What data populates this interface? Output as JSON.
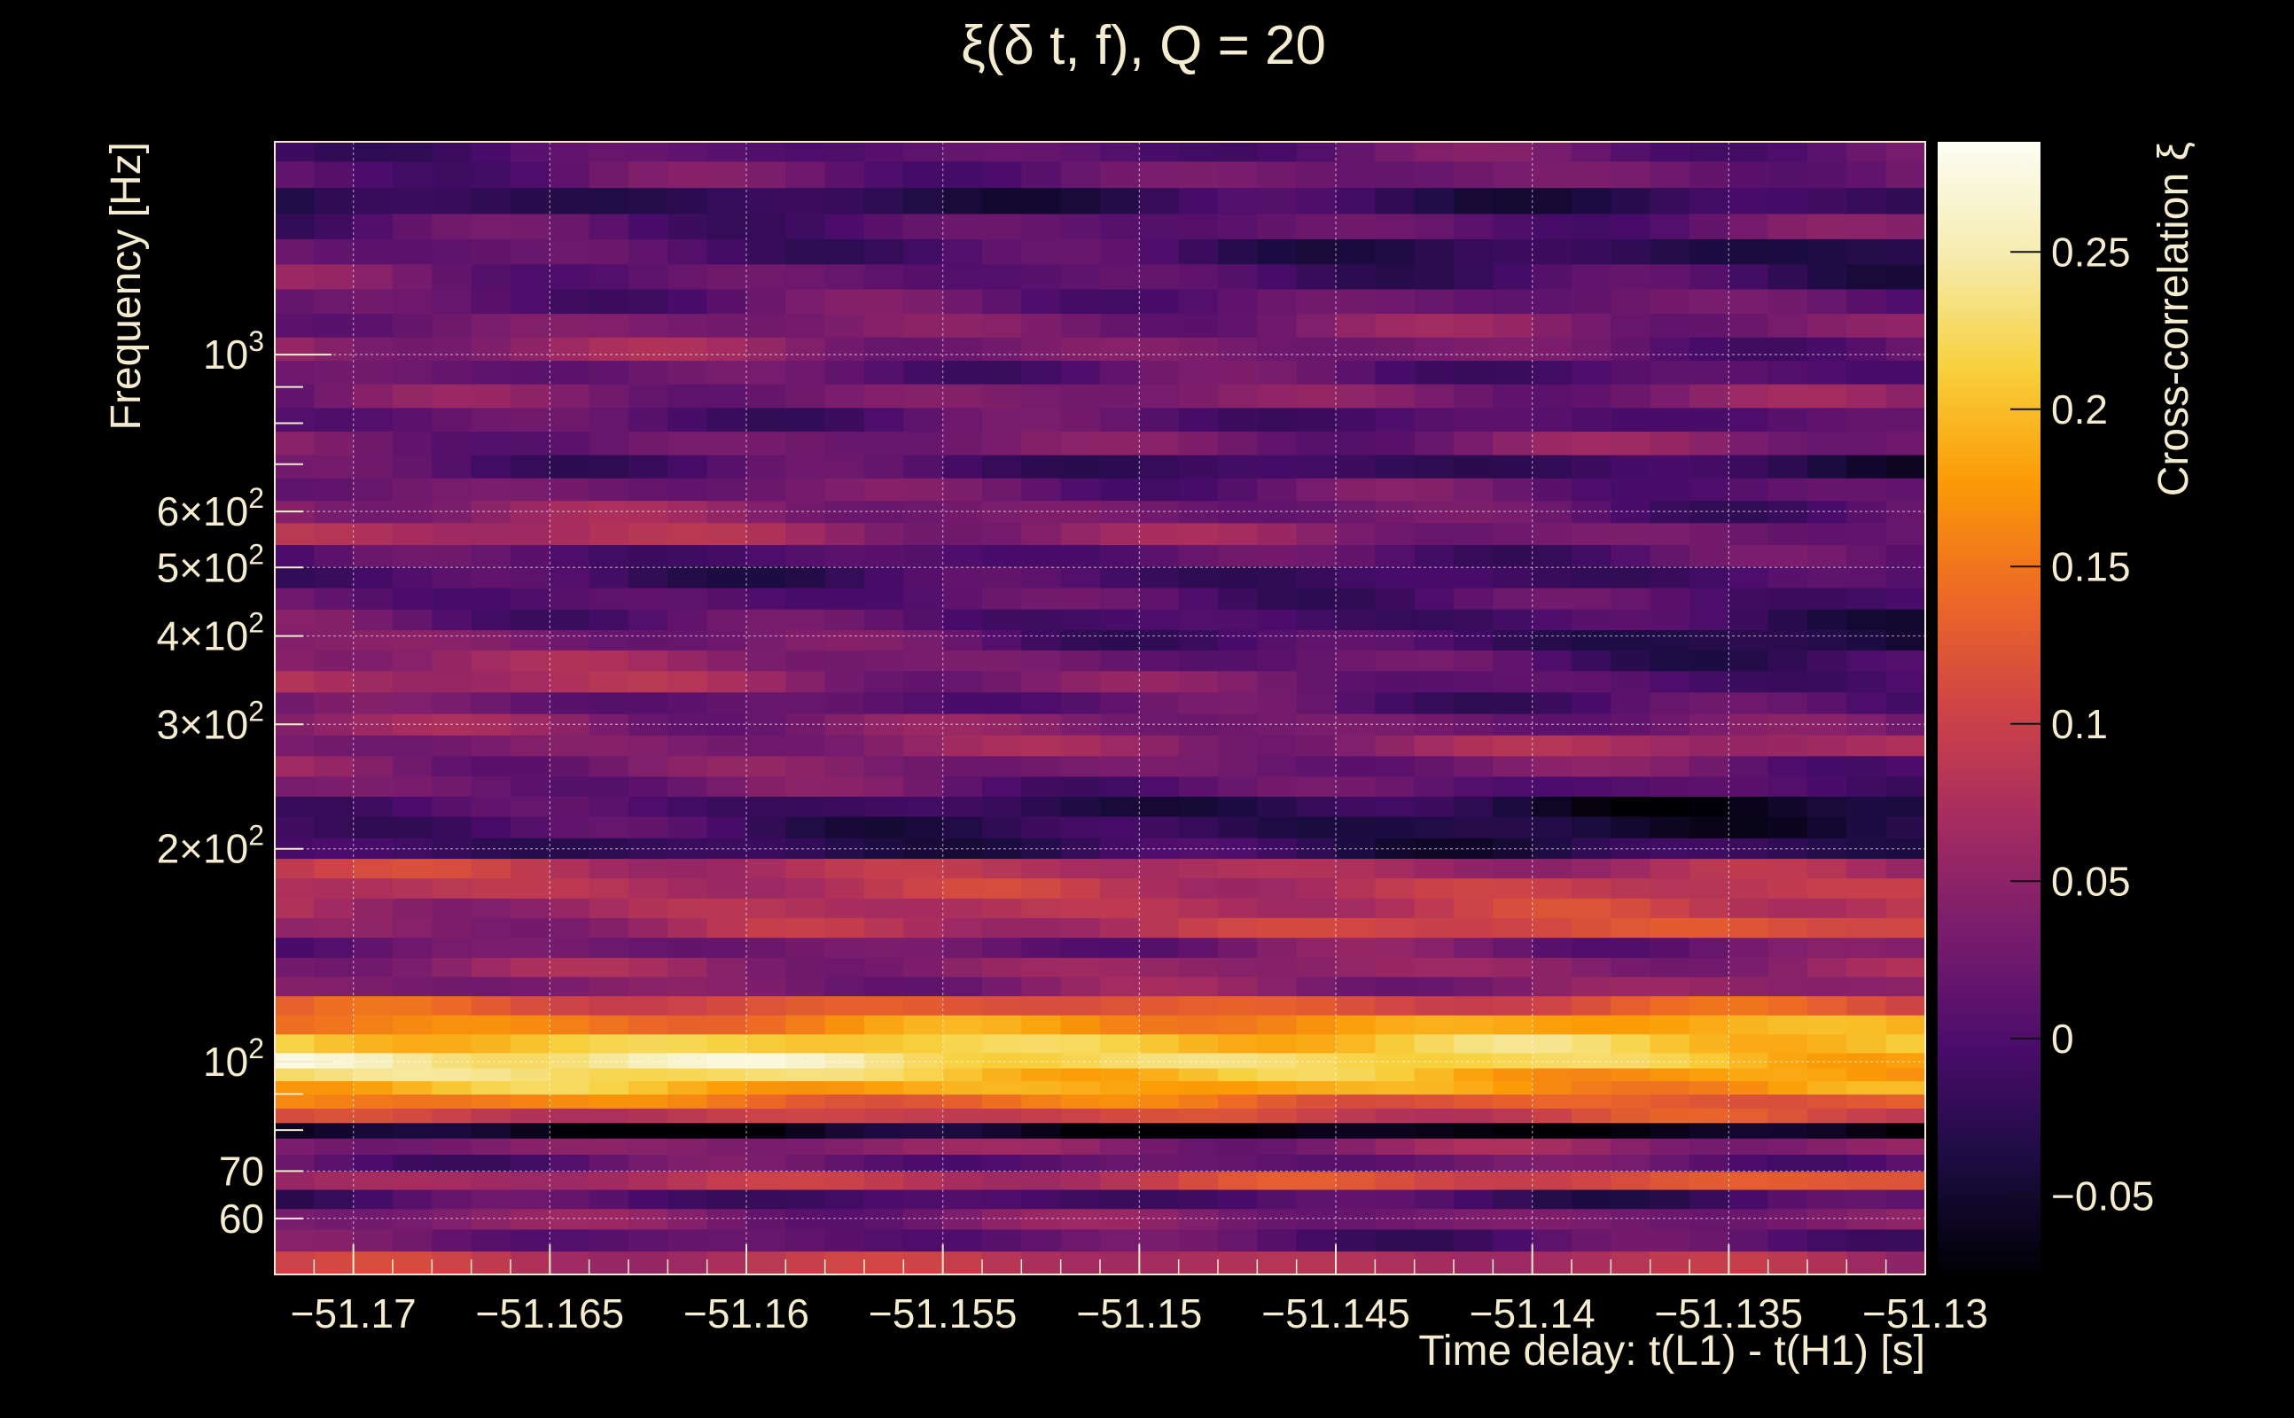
{
  "chart_data": {
    "type": "heatmap",
    "title": "ξ(δ t, f), Q = 20",
    "xlabel": "Time delay: t(L1) - t(H1) [s]",
    "ylabel": "Frequency [Hz]",
    "colorbar_label": "Cross-correlation ξ",
    "xlim": [
      -51.172,
      -51.13
    ],
    "ylim": [
      50,
      2000
    ],
    "y_scale": "log",
    "grid": true,
    "colormap": "inferno",
    "color_range": [
      -0.075,
      0.285
    ],
    "x_ticks": [
      {
        "value": -51.17,
        "label": "−51.17"
      },
      {
        "value": -51.165,
        "label": "−51.165"
      },
      {
        "value": -51.16,
        "label": "−51.16"
      },
      {
        "value": -51.155,
        "label": "−51.155"
      },
      {
        "value": -51.15,
        "label": "−51.15"
      },
      {
        "value": -51.145,
        "label": "−51.145"
      },
      {
        "value": -51.14,
        "label": "−51.14"
      },
      {
        "value": -51.135,
        "label": "−51.135"
      },
      {
        "value": -51.13,
        "label": "−51.13"
      }
    ],
    "y_ticks": [
      {
        "value": 60,
        "label": "60"
      },
      {
        "value": 70,
        "label": "70"
      },
      {
        "value": 100,
        "base": "10",
        "exp": "2",
        "label": "10²"
      },
      {
        "value": 200,
        "base": "2×10",
        "exp": "2",
        "label": "2×10²"
      },
      {
        "value": 300,
        "base": "3×10",
        "exp": "2",
        "label": "3×10²"
      },
      {
        "value": 400,
        "base": "4×10",
        "exp": "2",
        "label": "4×10²"
      },
      {
        "value": 500,
        "base": "5×10",
        "exp": "2",
        "label": "5×10²"
      },
      {
        "value": 600,
        "base": "6×10",
        "exp": "2",
        "label": "6×10²"
      },
      {
        "value": 1000,
        "base": "10",
        "exp": "3",
        "label": "10³"
      }
    ],
    "colorbar_ticks": [
      {
        "value": -0.05,
        "label": "−0.05"
      },
      {
        "value": 0,
        "label": "0"
      },
      {
        "value": 0.05,
        "label": "0.05"
      },
      {
        "value": 0.1,
        "label": "0.1"
      },
      {
        "value": 0.15,
        "label": "0.15"
      },
      {
        "value": 0.2,
        "label": "0.2"
      },
      {
        "value": 0.25,
        "label": "0.25"
      }
    ],
    "frequency_bands_hz": [
      52,
      56,
      60,
      64,
      68,
      72,
      76,
      80,
      84,
      88,
      92,
      96,
      100,
      106,
      113,
      120,
      128,
      136,
      145,
      155,
      165,
      176,
      188,
      200,
      215,
      230,
      245,
      262,
      280,
      300,
      322,
      345,
      370,
      395,
      422,
      452,
      485,
      520,
      558,
      600,
      645,
      695,
      750,
      810,
      875,
      945,
      1020,
      1100,
      1190,
      1290,
      1400,
      1520,
      1650,
      1800,
      1960
    ],
    "band_profiles": [
      [
        0.09,
        0.07
      ],
      [
        0.02,
        0.0
      ],
      [
        0.04,
        0.03
      ],
      [
        0.0,
        -0.01
      ],
      [
        0.06,
        0.13
      ],
      [
        0.01,
        0.02
      ],
      [
        0.04,
        0.05
      ],
      [
        -0.06,
        -0.07
      ],
      [
        0.09,
        0.11
      ],
      [
        0.16,
        0.12
      ],
      [
        0.2,
        0.17
      ],
      [
        0.24,
        0.17
      ],
      [
        0.26,
        0.2
      ],
      [
        0.21,
        0.21
      ],
      [
        0.15,
        0.19
      ],
      [
        0.12,
        0.12
      ],
      [
        0.03,
        0.05
      ],
      [
        0.05,
        0.05
      ],
      [
        0.02,
        0.03
      ],
      [
        0.04,
        0.13
      ],
      [
        0.06,
        0.1
      ],
      [
        0.08,
        0.09
      ],
      [
        0.09,
        0.06
      ],
      [
        -0.02,
        -0.03
      ],
      [
        0.0,
        -0.05
      ],
      [
        0.01,
        -0.06
      ],
      [
        0.03,
        0.0
      ],
      [
        0.04,
        0.02
      ],
      [
        0.03,
        0.07
      ],
      [
        0.05,
        0.02
      ],
      [
        0.02,
        0.0
      ],
      [
        0.08,
        -0.01
      ],
      [
        0.07,
        -0.02
      ],
      [
        0.05,
        -0.04
      ],
      [
        0.02,
        -0.02
      ],
      [
        0.01,
        0.0
      ],
      [
        -0.01,
        -0.01
      ],
      [
        0.0,
        0.01
      ],
      [
        0.08,
        0.02
      ],
      [
        0.06,
        0.0
      ],
      [
        0.03,
        0.01
      ],
      [
        0.01,
        -0.03
      ],
      [
        0.02,
        0.04
      ],
      [
        0.01,
        0.0
      ],
      [
        0.03,
        0.04
      ],
      [
        0.02,
        0.0
      ],
      [
        0.06,
        0.01
      ],
      [
        0.03,
        0.04
      ],
      [
        0.01,
        0.02
      ],
      [
        0.03,
        -0.02
      ],
      [
        0.02,
        -0.04
      ],
      [
        0.0,
        0.02
      ],
      [
        -0.03,
        -0.02
      ],
      [
        0.01,
        0.03
      ],
      [
        0.0,
        0.02
      ]
    ],
    "colors": {
      "background": "#000000",
      "text": "#f5ecd0",
      "grid": "#ffffff"
    }
  }
}
